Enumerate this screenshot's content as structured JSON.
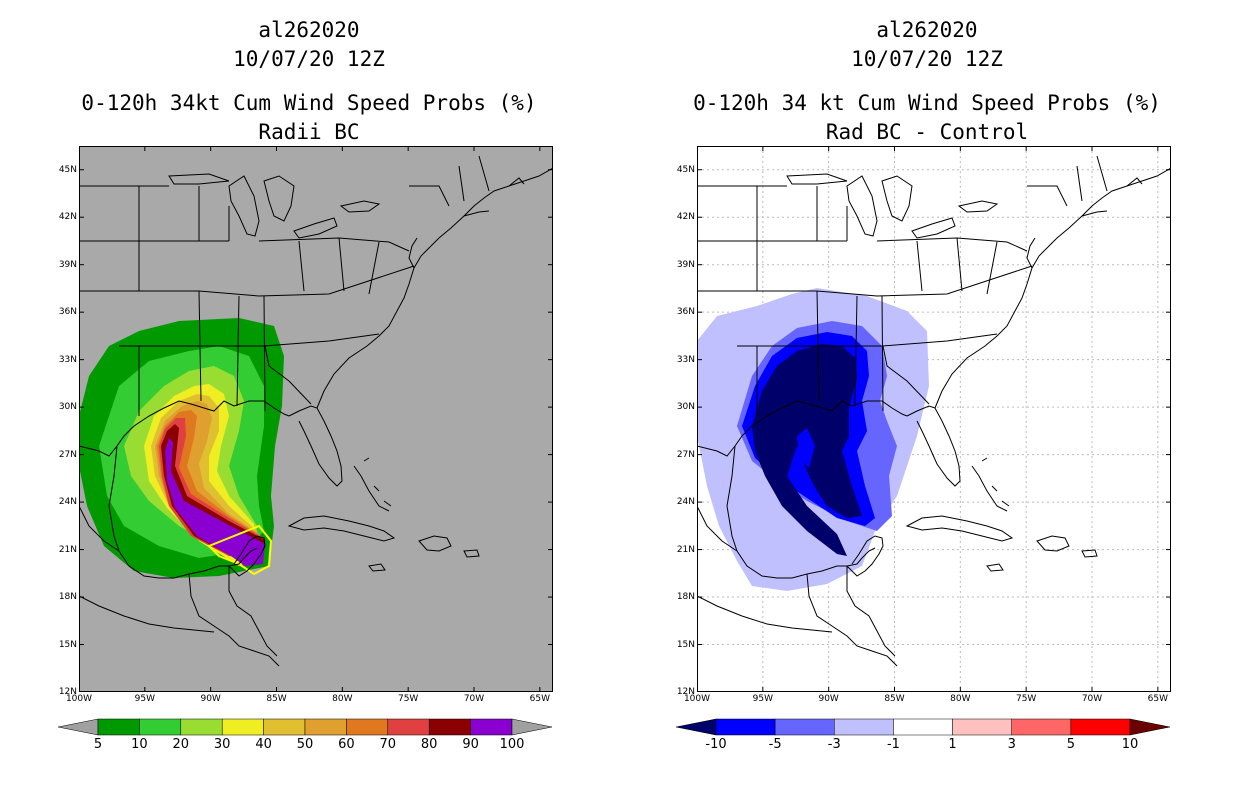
{
  "left": {
    "title_storm": "al262020",
    "title_date": "10/07/20 12Z",
    "title_product": "0-120h 34kt Cum Wind Speed Probs (%)",
    "title_sub": "Radii BC",
    "map_background": "#a9a9a9",
    "colorbar": {
      "labels": [
        "5",
        "10",
        "20",
        "30",
        "40",
        "50",
        "60",
        "70",
        "80",
        "90",
        "100"
      ],
      "colors": [
        "#a0a0a0",
        "#009900",
        "#33cc33",
        "#99dd33",
        "#eeee22",
        "#e0c030",
        "#e0a030",
        "#e07820",
        "#e04040",
        "#8b0000",
        "#8a00d0",
        "#a0a0a0"
      ],
      "data_values": [
        5,
        10,
        20,
        30,
        40,
        50,
        60,
        70,
        80,
        90,
        100
      ]
    }
  },
  "right": {
    "title_storm": "al262020",
    "title_date": "10/07/20 12Z",
    "title_product": "0-120h 34 kt Cum Wind Speed Probs (%)",
    "title_sub": "Rad BC - Control",
    "map_background": "#ffffff",
    "colorbar": {
      "labels": [
        "-10",
        "-5",
        "-3",
        "-1",
        "1",
        "3",
        "5",
        "10"
      ],
      "colors": [
        "#00006b",
        "#0000ff",
        "#6666ff",
        "#c0c0ff",
        "#ffffff",
        "#ffc0c0",
        "#ff6666",
        "#ff0000",
        "#6b0000"
      ],
      "data_values": [
        -10,
        -5,
        -3,
        -1,
        1,
        3,
        5,
        10
      ]
    }
  },
  "axes": {
    "lat_labels": [
      "45N",
      "42N",
      "39N",
      "36N",
      "33N",
      "30N",
      "27N",
      "24N",
      "21N",
      "18N",
      "15N",
      "12N"
    ],
    "lon_labels": [
      "100W",
      "95W",
      "90W",
      "85W",
      "80W",
      "75W",
      "70W",
      "65W"
    ],
    "lat_values": [
      45,
      42,
      39,
      36,
      33,
      30,
      27,
      24,
      21,
      18,
      15,
      12
    ],
    "lon_values": [
      -100,
      -95,
      -90,
      -85,
      -80,
      -75,
      -70,
      -65
    ],
    "lat_range": [
      12,
      46.5
    ],
    "lon_range": [
      -100,
      -64
    ]
  }
}
